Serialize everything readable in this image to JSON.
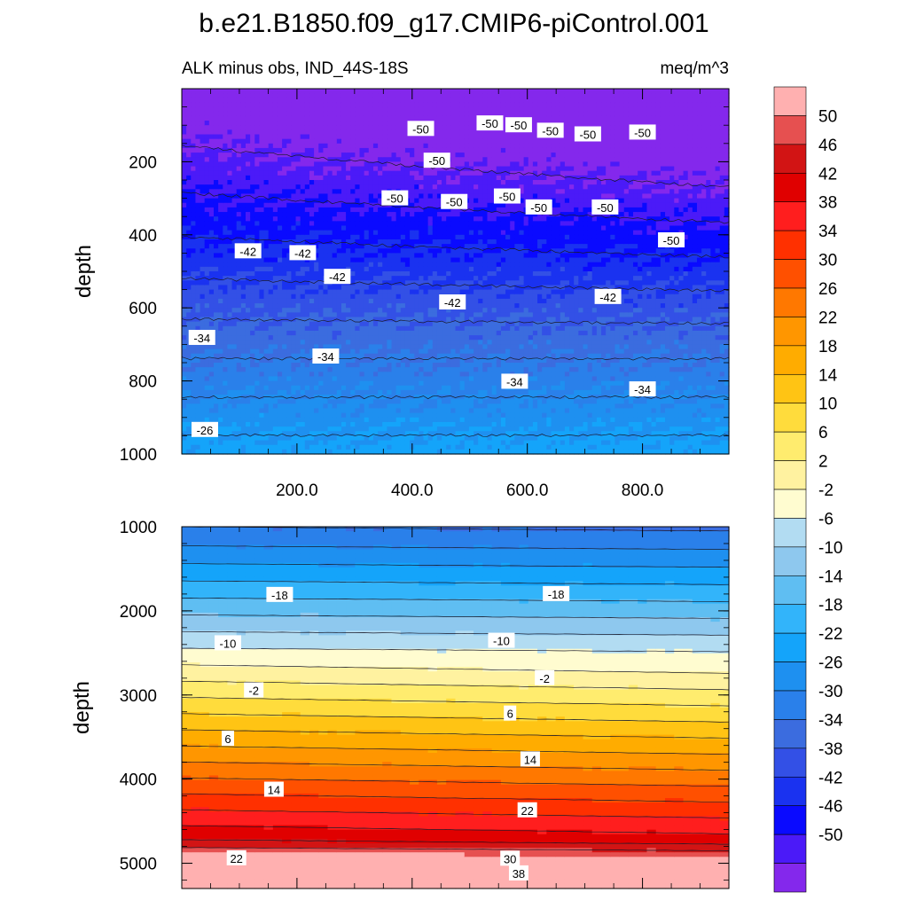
{
  "title": "b.e21.B1850.f09_g17.CMIP6-piControl.001",
  "chart_data": {
    "type": "heatmap",
    "subtitle_left": "ALK minus obs, IND_44S-18S",
    "subtitle_right": "meq/m^3",
    "colorbar": {
      "labels": [
        "50",
        "46",
        "42",
        "38",
        "34",
        "30",
        "26",
        "22",
        "18",
        "14",
        "10",
        "6",
        "2",
        "-2",
        "-6",
        "-10",
        "-14",
        "-18",
        "-22",
        "-26",
        "-30",
        "-34",
        "-38",
        "-42",
        "-46",
        "-50"
      ],
      "colors": [
        "#ffb0b0",
        "#e65050",
        "#d21414",
        "#e00000",
        "#ff1e1e",
        "#ff3000",
        "#ff5000",
        "#ff7800",
        "#ff9600",
        "#ffac00",
        "#ffc414",
        "#ffdc3c",
        "#ffec6e",
        "#fff2a0",
        "#fffcd0",
        "#b2dcf2",
        "#8ec8ee",
        "#5fbef2",
        "#32b4fa",
        "#14a4fa",
        "#1e90f0",
        "#2a80ea",
        "#3b6cdf",
        "#3350e6",
        "#1a32f0",
        "#0a0aff",
        "#4b1af8",
        "#8428ec"
      ]
    },
    "panels": [
      {
        "name": "upper",
        "ylabel": "depth",
        "ylim": [
          0,
          1000
        ],
        "y_ticks": [
          "200",
          "400",
          "600",
          "800",
          "1000"
        ],
        "x_ticks": [
          "200.0",
          "400.0",
          "600.0",
          "800.0"
        ],
        "xlim": [
          0,
          950
        ],
        "contour_labels": [
          {
            "text": "-50",
            "x": 415,
            "y": 110
          },
          {
            "text": "-50",
            "x": 535,
            "y": 95
          },
          {
            "text": "-50",
            "x": 585,
            "y": 100
          },
          {
            "text": "-50",
            "x": 640,
            "y": 115
          },
          {
            "text": "-50",
            "x": 705,
            "y": 125
          },
          {
            "text": "-50",
            "x": 800,
            "y": 120
          },
          {
            "text": "-50",
            "x": 443,
            "y": 197
          },
          {
            "text": "-50",
            "x": 370,
            "y": 300
          },
          {
            "text": "-50",
            "x": 473,
            "y": 310
          },
          {
            "text": "-50",
            "x": 565,
            "y": 295
          },
          {
            "text": "-50",
            "x": 620,
            "y": 325
          },
          {
            "text": "-50",
            "x": 735,
            "y": 325
          },
          {
            "text": "-50",
            "x": 850,
            "y": 415
          },
          {
            "text": "-42",
            "x": 115,
            "y": 445
          },
          {
            "text": "-42",
            "x": 210,
            "y": 450
          },
          {
            "text": "-42",
            "x": 270,
            "y": 515
          },
          {
            "text": "-42",
            "x": 470,
            "y": 585
          },
          {
            "text": "-42",
            "x": 740,
            "y": 570
          },
          {
            "text": "-34",
            "x": 35,
            "y": 682
          },
          {
            "text": "-34",
            "x": 250,
            "y": 733
          },
          {
            "text": "-34",
            "x": 578,
            "y": 802
          },
          {
            "text": "-34",
            "x": 800,
            "y": 823
          },
          {
            "text": "-26",
            "x": 40,
            "y": 934
          }
        ]
      },
      {
        "name": "lower",
        "ylabel": "depth",
        "ylim": [
          1000,
          5300
        ],
        "y_ticks": [
          "1000",
          "2000",
          "3000",
          "4000",
          "5000"
        ],
        "xlim": [
          0,
          950
        ],
        "contour_labels": [
          {
            "text": "-18",
            "x": 170,
            "y": 1810
          },
          {
            "text": "-18",
            "x": 650,
            "y": 1800
          },
          {
            "text": "-10",
            "x": 80,
            "y": 2385
          },
          {
            "text": "-10",
            "x": 555,
            "y": 2355
          },
          {
            "text": "-2",
            "x": 125,
            "y": 2945
          },
          {
            "text": "-2",
            "x": 630,
            "y": 2800
          },
          {
            "text": "6",
            "x": 80,
            "y": 3520
          },
          {
            "text": "6",
            "x": 570,
            "y": 3220
          },
          {
            "text": "14",
            "x": 160,
            "y": 4125
          },
          {
            "text": "14",
            "x": 605,
            "y": 3765
          },
          {
            "text": "22",
            "x": 95,
            "y": 4940
          },
          {
            "text": "22",
            "x": 600,
            "y": 4370
          },
          {
            "text": "30",
            "x": 570,
            "y": 4945
          },
          {
            "text": "38",
            "x": 585,
            "y": 5120
          }
        ]
      }
    ]
  }
}
